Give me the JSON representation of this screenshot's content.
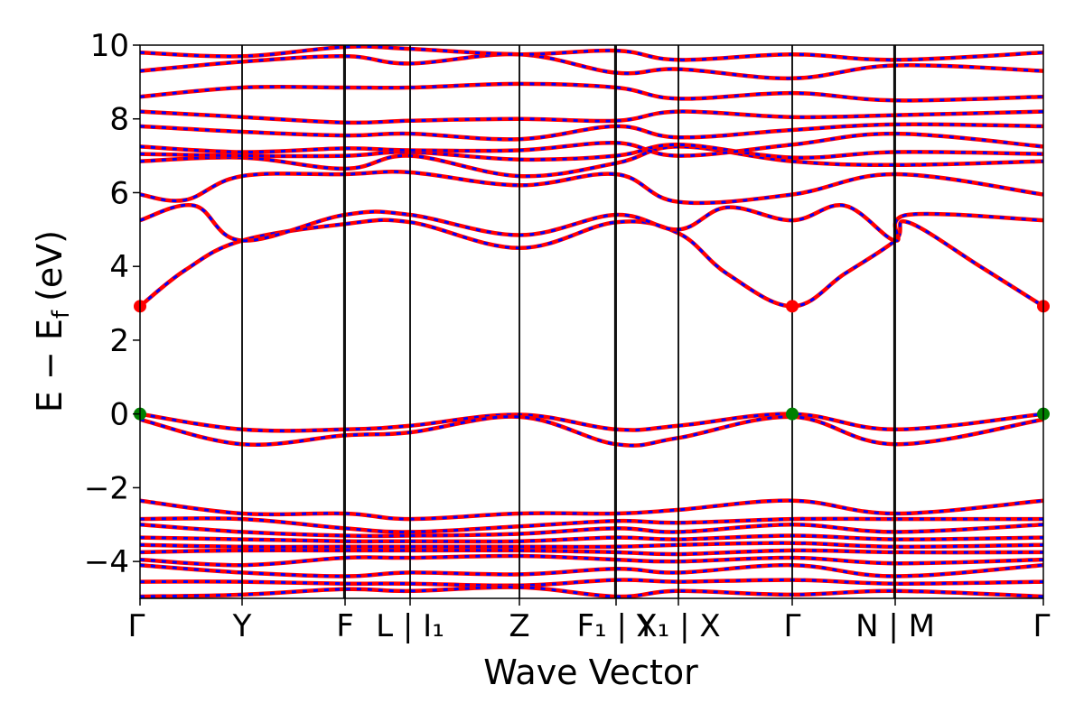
{
  "chart_data": {
    "type": "line",
    "xlabel": "Wave Vector",
    "ylabel_main": "E − E",
    "ylabel_sub": "f",
    "ylabel_unit": "(eV)",
    "ylim": [
      -5,
      10
    ],
    "yticks": [
      -4,
      -2,
      0,
      2,
      4,
      6,
      8,
      10
    ],
    "ytick_labels": [
      "−4",
      "−2",
      "0",
      "2",
      "4",
      "6",
      "8",
      "10"
    ],
    "kpoints": [
      {
        "x": 0.0,
        "label": "Γ"
      },
      {
        "x": 0.113,
        "label": "Y"
      },
      {
        "x": 0.227,
        "label": "F"
      },
      {
        "x": 0.299,
        "label": "L | I₁"
      },
      {
        "x": 0.42,
        "label": "Z"
      },
      {
        "x": 0.527,
        "label": "F₁ | Y"
      },
      {
        "x": 0.596,
        "label": "X₁ | X"
      },
      {
        "x": 0.722,
        "label": "Γ"
      },
      {
        "x": 0.836,
        "label": "N | M"
      },
      {
        "x": 1.0,
        "label": "Γ"
      }
    ],
    "path_breaks_x": [
      0.227,
      0.527,
      0.836
    ],
    "series_colors": {
      "spin_up": "#ff0000",
      "spin_down": "#0000ff"
    },
    "markers": [
      {
        "x": 0.0,
        "y": 2.92,
        "color": "#ff0000",
        "kind": "CBM"
      },
      {
        "x": 0.722,
        "y": 2.92,
        "color": "#ff0000",
        "kind": "CBM"
      },
      {
        "x": 1.0,
        "y": 2.92,
        "color": "#ff0000",
        "kind": "CBM"
      },
      {
        "x": 0.0,
        "y": 0.0,
        "color": "#008000",
        "kind": "VBM"
      },
      {
        "x": 0.722,
        "y": 0.0,
        "color": "#008000",
        "kind": "VBM"
      },
      {
        "x": 1.0,
        "y": 0.0,
        "color": "#008000",
        "kind": "VBM"
      }
    ],
    "bands": [
      {
        "name": "vb1",
        "x": [
          0,
          0.113,
          0.227,
          0.299,
          0.42,
          0.527,
          0.596,
          0.722,
          0.836,
          1.0
        ],
        "y": [
          0.0,
          -0.42,
          -0.42,
          -0.32,
          -0.02,
          -0.42,
          -0.32,
          0.0,
          -0.42,
          0.0
        ]
      },
      {
        "name": "vb2",
        "x": [
          0,
          0.113,
          0.227,
          0.299,
          0.42,
          0.527,
          0.596,
          0.722,
          0.836,
          1.0
        ],
        "y": [
          -0.15,
          -0.82,
          -0.58,
          -0.5,
          -0.08,
          -0.82,
          -0.65,
          -0.08,
          -0.82,
          -0.15
        ]
      },
      {
        "name": "cb1",
        "x": [
          0,
          0.05,
          0.113,
          0.227,
          0.299,
          0.42,
          0.527,
          0.596,
          0.65,
          0.722,
          0.78,
          0.836,
          0.85,
          0.93,
          1.0
        ],
        "y": [
          2.92,
          3.9,
          4.7,
          5.15,
          5.2,
          4.5,
          5.2,
          4.9,
          3.8,
          2.92,
          3.8,
          4.7,
          5.2,
          4.0,
          2.92
        ]
      },
      {
        "name": "cb2",
        "x": [
          0,
          0.06,
          0.113,
          0.227,
          0.299,
          0.42,
          0.527,
          0.596,
          0.65,
          0.722,
          0.78,
          0.836,
          0.85,
          1.0
        ],
        "y": [
          5.25,
          5.65,
          4.7,
          5.4,
          5.4,
          4.85,
          5.4,
          5.0,
          5.6,
          5.25,
          5.65,
          4.7,
          5.4,
          5.25
        ]
      },
      {
        "name": "cb3",
        "x": [
          0,
          0.05,
          0.113,
          0.227,
          0.299,
          0.42,
          0.527,
          0.596,
          0.722,
          0.836,
          1.0
        ],
        "y": [
          5.95,
          5.8,
          6.45,
          6.5,
          6.55,
          6.2,
          6.5,
          5.75,
          5.95,
          6.5,
          5.95
        ]
      },
      {
        "name": "cb4",
        "x": [
          0,
          0.113,
          0.227,
          0.299,
          0.42,
          0.527,
          0.596,
          0.722,
          0.836,
          1.0
        ],
        "y": [
          6.85,
          6.95,
          6.65,
          7.0,
          6.45,
          6.8,
          7.25,
          6.85,
          6.75,
          6.85
        ]
      },
      {
        "name": "cb5",
        "x": [
          0,
          0.113,
          0.227,
          0.299,
          0.42,
          0.527,
          0.596,
          0.722,
          0.836,
          1.0
        ],
        "y": [
          7.05,
          7.0,
          7.0,
          7.1,
          6.9,
          7.0,
          7.3,
          6.95,
          7.1,
          7.05
        ]
      },
      {
        "name": "cb6",
        "x": [
          0,
          0.113,
          0.227,
          0.299,
          0.42,
          0.527,
          0.596,
          0.722,
          0.836,
          1.0
        ],
        "y": [
          7.25,
          7.1,
          7.2,
          7.15,
          7.15,
          7.35,
          7.0,
          7.3,
          7.6,
          7.25
        ]
      },
      {
        "name": "cb7",
        "x": [
          0,
          0.113,
          0.227,
          0.299,
          0.42,
          0.527,
          0.596,
          0.722,
          0.836,
          1.0
        ],
        "y": [
          7.8,
          7.65,
          7.55,
          7.6,
          7.45,
          7.8,
          7.5,
          7.7,
          7.85,
          7.8
        ]
      },
      {
        "name": "cb8",
        "x": [
          0,
          0.113,
          0.227,
          0.299,
          0.42,
          0.527,
          0.596,
          0.722,
          0.836,
          1.0
        ],
        "y": [
          8.2,
          8.05,
          7.9,
          7.95,
          8.0,
          7.95,
          8.2,
          8.05,
          8.1,
          8.2
        ]
      },
      {
        "name": "cb9",
        "x": [
          0,
          0.113,
          0.227,
          0.299,
          0.42,
          0.527,
          0.596,
          0.722,
          0.836,
          1.0
        ],
        "y": [
          8.6,
          8.85,
          8.85,
          8.85,
          8.95,
          8.85,
          8.55,
          8.7,
          8.5,
          8.6
        ]
      },
      {
        "name": "cb10",
        "x": [
          0,
          0.113,
          0.227,
          0.299,
          0.42,
          0.527,
          0.596,
          0.722,
          0.836,
          1.0
        ],
        "y": [
          9.3,
          9.55,
          9.7,
          9.5,
          9.75,
          9.25,
          9.35,
          9.1,
          9.45,
          9.3
        ]
      },
      {
        "name": "cb11",
        "x": [
          0,
          0.113,
          0.227,
          0.299,
          0.42,
          0.527,
          0.596,
          0.722,
          0.836,
          1.0
        ],
        "y": [
          9.8,
          9.7,
          9.95,
          9.9,
          9.75,
          9.85,
          9.6,
          9.75,
          9.6,
          9.8
        ]
      },
      {
        "name": "db1",
        "x": [
          0,
          0.113,
          0.227,
          0.299,
          0.42,
          0.527,
          0.596,
          0.722,
          0.836,
          1.0
        ],
        "y": [
          -2.35,
          -2.7,
          -2.7,
          -2.85,
          -2.7,
          -2.7,
          -2.6,
          -2.35,
          -2.7,
          -2.35
        ]
      },
      {
        "name": "db2",
        "x": [
          0,
          0.113,
          0.227,
          0.299,
          0.42,
          0.527,
          0.596,
          0.722,
          0.836,
          1.0
        ],
        "y": [
          -2.85,
          -2.85,
          -3.1,
          -3.2,
          -3.05,
          -2.9,
          -2.95,
          -2.85,
          -2.85,
          -2.85
        ]
      },
      {
        "name": "db3",
        "x": [
          0,
          0.113,
          0.227,
          0.299,
          0.42,
          0.527,
          0.596,
          0.722,
          0.836,
          1.0
        ],
        "y": [
          -3.0,
          -3.2,
          -3.3,
          -3.3,
          -3.25,
          -3.1,
          -3.2,
          -3.0,
          -3.2,
          -3.0
        ]
      },
      {
        "name": "db4",
        "x": [
          0,
          0.113,
          0.227,
          0.299,
          0.42,
          0.527,
          0.596,
          0.722,
          0.836,
          1.0
        ],
        "y": [
          -3.35,
          -3.4,
          -3.45,
          -3.45,
          -3.45,
          -3.35,
          -3.4,
          -3.3,
          -3.4,
          -3.35
        ]
      },
      {
        "name": "db5",
        "x": [
          0,
          0.113,
          0.227,
          0.299,
          0.42,
          0.527,
          0.596,
          0.722,
          0.836,
          1.0
        ],
        "y": [
          -3.55,
          -3.6,
          -3.6,
          -3.6,
          -3.6,
          -3.6,
          -3.55,
          -3.5,
          -3.6,
          -3.55
        ]
      },
      {
        "name": "db6",
        "x": [
          0,
          0.113,
          0.227,
          0.299,
          0.42,
          0.527,
          0.596,
          0.722,
          0.836,
          1.0
        ],
        "y": [
          -3.75,
          -3.7,
          -3.7,
          -3.7,
          -3.7,
          -3.75,
          -3.8,
          -3.7,
          -3.75,
          -3.75
        ]
      },
      {
        "name": "db7",
        "x": [
          0,
          0.113,
          0.227,
          0.299,
          0.42,
          0.527,
          0.596,
          0.722,
          0.836,
          1.0
        ],
        "y": [
          -3.95,
          -4.1,
          -3.9,
          -3.9,
          -3.85,
          -3.95,
          -4.0,
          -3.9,
          -4.05,
          -3.95
        ]
      },
      {
        "name": "db8",
        "x": [
          0,
          0.113,
          0.227,
          0.299,
          0.42,
          0.527,
          0.596,
          0.722,
          0.836,
          1.0
        ],
        "y": [
          -4.1,
          -4.3,
          -4.4,
          -4.3,
          -4.35,
          -4.2,
          -4.3,
          -4.1,
          -4.4,
          -4.1
        ]
      },
      {
        "name": "db9",
        "x": [
          0,
          0.113,
          0.227,
          0.299,
          0.42,
          0.527,
          0.596,
          0.722,
          0.836,
          1.0
        ],
        "y": [
          -4.55,
          -4.55,
          -4.6,
          -4.6,
          -4.65,
          -4.5,
          -4.55,
          -4.5,
          -4.6,
          -4.55
        ]
      },
      {
        "name": "db10",
        "x": [
          0,
          0.113,
          0.227,
          0.299,
          0.42,
          0.527,
          0.596,
          0.722,
          0.836,
          1.0
        ],
        "y": [
          -4.95,
          -4.9,
          -4.75,
          -4.8,
          -4.7,
          -4.95,
          -4.8,
          -4.9,
          -4.8,
          -4.95
        ]
      }
    ]
  }
}
